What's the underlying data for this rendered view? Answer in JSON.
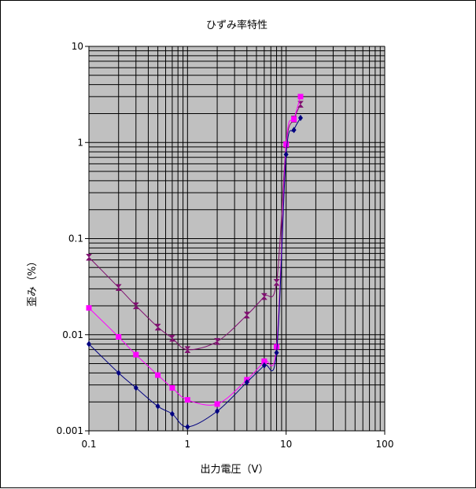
{
  "chart_data": {
    "type": "line",
    "title": "ひずみ率特性",
    "xlabel": "出力電圧（V）",
    "ylabel": "歪み（%）",
    "x_scale": "log",
    "y_scale": "log",
    "xlim": [
      0.1,
      100
    ],
    "ylim": [
      0.001,
      10
    ],
    "x_ticks": [
      "0.1",
      "1",
      "10",
      "100"
    ],
    "y_ticks": [
      "0.001",
      "0.01",
      "0.1",
      "1",
      "10"
    ],
    "grid": true,
    "legend": "none",
    "plot_background": "#c0c0c0",
    "series": [
      {
        "color": "#7f0f6f",
        "marker": "hourglass",
        "x": [
          0.1,
          0.2,
          0.3,
          0.5,
          0.7,
          1,
          2,
          4,
          6,
          8,
          10,
          12,
          14
        ],
        "y": [
          0.064,
          0.031,
          0.02,
          0.012,
          0.0092,
          0.007,
          0.0085,
          0.016,
          0.025,
          0.035,
          0.95,
          1.75,
          2.5
        ]
      },
      {
        "color": "#ff00ff",
        "marker": "square",
        "x": [
          0.1,
          0.2,
          0.3,
          0.5,
          0.7,
          1,
          2,
          4,
          6,
          8,
          10,
          12,
          14
        ],
        "y": [
          0.019,
          0.0095,
          0.0062,
          0.0038,
          0.0028,
          0.0021,
          0.0019,
          0.0034,
          0.0053,
          0.0075,
          0.96,
          1.75,
          3.0
        ]
      },
      {
        "color": "#000080",
        "marker": "diamond",
        "x": [
          0.1,
          0.2,
          0.3,
          0.5,
          0.7,
          1,
          2,
          4,
          6,
          8,
          10,
          12,
          14
        ],
        "y": [
          0.008,
          0.004,
          0.0028,
          0.0018,
          0.0015,
          0.0011,
          0.0016,
          0.0032,
          0.0048,
          0.0065,
          0.75,
          1.35,
          1.8
        ]
      }
    ]
  }
}
